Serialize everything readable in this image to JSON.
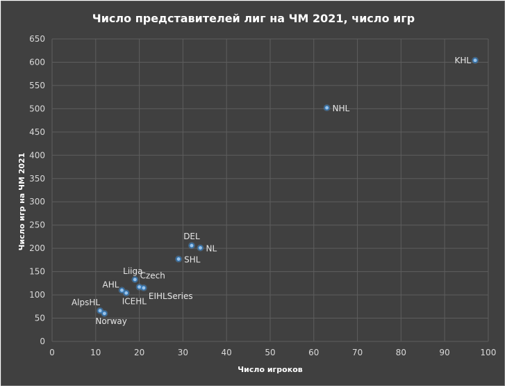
{
  "chart_data": {
    "type": "scatter",
    "title": "Число представителей лиг на ЧМ 2021, число игр",
    "xlabel": "Число игроков",
    "ylabel": "Число игр на ЧМ 2021",
    "xlim": [
      0,
      100
    ],
    "ylim": [
      0,
      650
    ],
    "x_ticks": [
      0,
      10,
      20,
      30,
      40,
      50,
      60,
      70,
      80,
      90,
      100
    ],
    "y_ticks": [
      0,
      50,
      100,
      150,
      200,
      250,
      300,
      350,
      400,
      450,
      500,
      550,
      600,
      650
    ],
    "grid": true,
    "legend": "none",
    "marker_color": "#9dc3e6",
    "points": [
      {
        "label": "KHL",
        "x": 97,
        "y": 604
      },
      {
        "label": "NHL",
        "x": 63,
        "y": 502
      },
      {
        "label": "DEL",
        "x": 32,
        "y": 206
      },
      {
        "label": "NL",
        "x": 34,
        "y": 201
      },
      {
        "label": "SHL",
        "x": 29,
        "y": 177
      },
      {
        "label": "Liiga",
        "x": 19,
        "y": 133
      },
      {
        "label": "Czech",
        "x": 20,
        "y": 117
      },
      {
        "label": "EIHLSeries",
        "x": 21,
        "y": 115
      },
      {
        "label": "AHL",
        "x": 16,
        "y": 110
      },
      {
        "label": "ICEHL",
        "x": 17,
        "y": 104
      },
      {
        "label": "AlpsHL",
        "x": 11,
        "y": 66
      },
      {
        "label": "Norway",
        "x": 12,
        "y": 60
      }
    ]
  }
}
